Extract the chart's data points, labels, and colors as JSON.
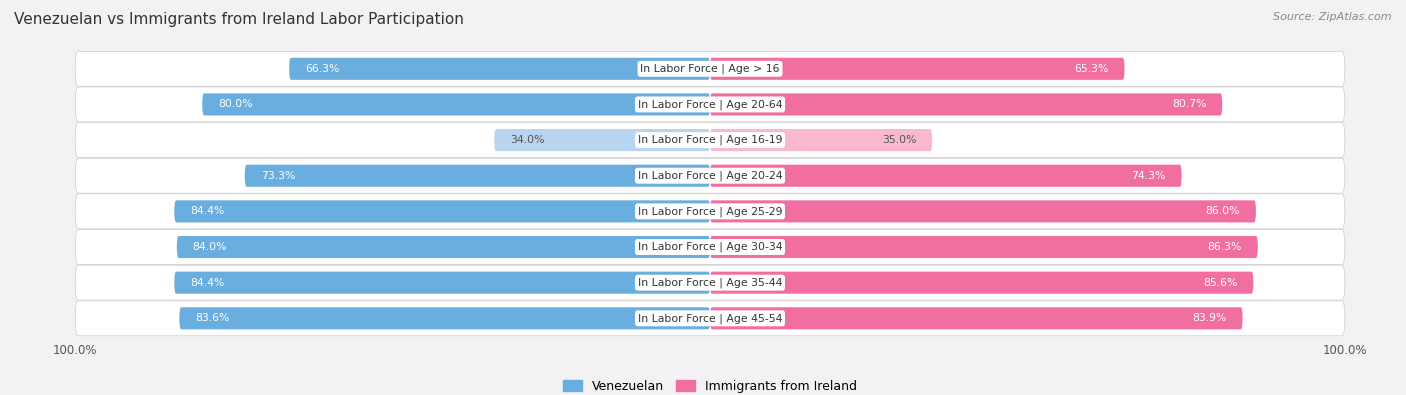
{
  "title": "Venezuelan vs Immigrants from Ireland Labor Participation",
  "source": "Source: ZipAtlas.com",
  "categories": [
    "In Labor Force | Age > 16",
    "In Labor Force | Age 20-64",
    "In Labor Force | Age 16-19",
    "In Labor Force | Age 20-24",
    "In Labor Force | Age 25-29",
    "In Labor Force | Age 30-34",
    "In Labor Force | Age 35-44",
    "In Labor Force | Age 45-54"
  ],
  "venezuelan": [
    66.3,
    80.0,
    34.0,
    73.3,
    84.4,
    84.0,
    84.4,
    83.6
  ],
  "ireland": [
    65.3,
    80.7,
    35.0,
    74.3,
    86.0,
    86.3,
    85.6,
    83.9
  ],
  "venezuelan_color": "#6aaee0",
  "ireland_color": "#f06fa0",
  "venezuelan_light_color": "#b8d4ee",
  "ireland_light_color": "#f8b8d0",
  "row_bg_color": "#e8e8ec",
  "background_color": "#f2f2f4",
  "max_value": 100.0,
  "bar_height": 0.62,
  "legend_venezuelan": "Venezuelan",
  "legend_ireland": "Immigrants from Ireland"
}
